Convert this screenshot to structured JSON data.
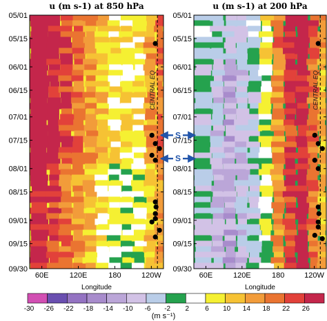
{
  "chart_data": [
    {
      "type": "heatmap",
      "title": "u (m s-1) at 850 hPa",
      "xlabel": "Longitude",
      "x_ticks": [
        "60E",
        "120E",
        "180",
        "120W"
      ],
      "y_ticks": [
        "05/01",
        "05/15",
        "06/01",
        "06/15",
        "07/01",
        "07/15",
        "08/01",
        "08/15",
        "09/01",
        "09/15",
        "09/30"
      ],
      "xlim_deg_east": [
        40,
        260
      ],
      "region_label": "CENTRAL EQ",
      "reference_longitude_deg_east": 250,
      "markers_date": [
        "05/18",
        "07/12",
        "07/17",
        "07/20",
        "07/24",
        "07/27",
        "08/21",
        "08/24",
        "08/28",
        "08/31",
        "09/02",
        "09/07",
        "09/11"
      ],
      "zones": [
        {
          "lon": 60,
          "level": 7
        },
        {
          "lon": 80,
          "level": 6
        },
        {
          "lon": 100,
          "level": 5
        },
        {
          "lon": 120,
          "level": 4
        },
        {
          "lon": 140,
          "level": 3
        },
        {
          "lon": 160,
          "level": 2
        },
        {
          "lon": 180,
          "level": 1
        },
        {
          "lon": 200,
          "level": 1
        },
        {
          "lon": 220,
          "level": 1
        },
        {
          "lon": 240,
          "level": 3
        },
        {
          "lon": 255,
          "level": 4
        }
      ]
    },
    {
      "type": "heatmap",
      "title": "u (m s-1) at 200 hPa",
      "xlabel": "Longitude",
      "x_ticks": [
        "60E",
        "120E",
        "180",
        "120W"
      ],
      "xlim_deg_east": [
        40,
        260
      ],
      "region_label": "CENTRAL EQ",
      "reference_longitude_deg_east": 250,
      "markers_date": [
        "05/18",
        "07/12",
        "07/17",
        "07/20",
        "07/27",
        "08/01",
        "08/24",
        "08/28",
        "09/02",
        "09/05",
        "09/10",
        "09/12"
      ],
      "zones": [
        {
          "lon": 60,
          "level": -2
        },
        {
          "lon": 80,
          "level": -3
        },
        {
          "lon": 100,
          "level": -4
        },
        {
          "lon": 120,
          "level": -3
        },
        {
          "lon": 140,
          "level": -2
        },
        {
          "lon": 160,
          "level": 0
        },
        {
          "lon": 180,
          "level": 3
        },
        {
          "lon": 200,
          "level": 5
        },
        {
          "lon": 220,
          "level": 6
        },
        {
          "lon": 240,
          "level": 4
        },
        {
          "lon": 255,
          "level": 2
        }
      ]
    }
  ],
  "colorbar": {
    "ticks": [
      "-30",
      "-26",
      "-22",
      "-18",
      "-14",
      "-10",
      "-6",
      "-2",
      "2",
      "6",
      "10",
      "14",
      "18",
      "22",
      "26"
    ],
    "colors": [
      "#d24fb3",
      "#6a4fb0",
      "#9473c2",
      "#a88ccc",
      "#bba6d8",
      "#d2c2e6",
      "#b9cde8",
      "#25a24e",
      "#ffffff",
      "#f5f032",
      "#f6c234",
      "#f29c3a",
      "#ea7431",
      "#e2413a",
      "#c4264b"
    ],
    "unit": "(m s⁻¹)"
  },
  "annotations": {
    "arrow_label": "S",
    "arrow_dates": [
      "07/12",
      "07/26"
    ]
  }
}
